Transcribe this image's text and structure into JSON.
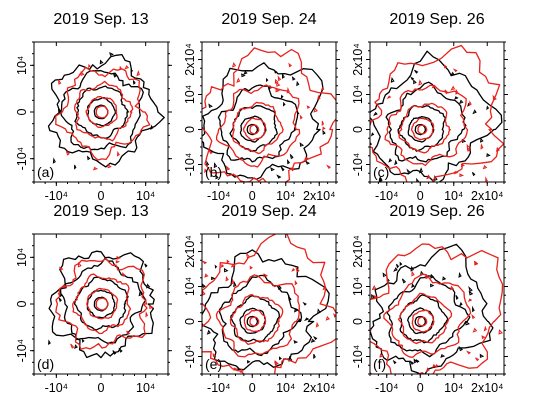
{
  "figure": {
    "panels": [
      {
        "id": "a",
        "title": "2019 Sep. 13",
        "label": "(a)",
        "x_ticks": [
          "-10⁴",
          "0",
          "10⁴"
        ],
        "y_ticks": [
          "10⁴",
          "0",
          "-10⁴"
        ],
        "xlim": [
          -15000,
          15000
        ],
        "ylim": [
          -15000,
          15000
        ]
      },
      {
        "id": "b",
        "title": "2019 Sep. 24",
        "label": "(b)",
        "x_ticks": [
          "-10⁴",
          "0",
          "10⁴",
          "2x10⁴"
        ],
        "y_ticks": [
          "2x10⁴",
          "10⁴",
          "0",
          "-10⁴"
        ],
        "xlim": [
          -15000,
          25000
        ],
        "ylim": [
          -15000,
          25000
        ]
      },
      {
        "id": "c",
        "title": "2019 Sep. 26",
        "label": "(c)",
        "x_ticks": [
          "-10⁴",
          "0",
          "10⁴",
          "2x10⁴"
        ],
        "y_ticks": [
          "2x10⁴",
          "10⁴",
          "0",
          "-10⁴"
        ],
        "xlim": [
          -15000,
          25000
        ],
        "ylim": [
          -15000,
          25000
        ]
      },
      {
        "id": "d",
        "title": "2019 Sep. 13",
        "label": "(d)",
        "x_ticks": [
          "-10⁴",
          "0",
          "10⁴"
        ],
        "y_ticks": [
          "10⁴",
          "0",
          "-10⁴"
        ],
        "xlim": [
          -15000,
          15000
        ],
        "ylim": [
          -15000,
          15000
        ]
      },
      {
        "id": "e",
        "title": "2019 Sep. 24",
        "label": "(e)",
        "x_ticks": [
          "-10⁴",
          "0",
          "10⁴",
          "2x10⁴"
        ],
        "y_ticks": [
          "2x10⁴",
          "10⁴",
          "0",
          "-10⁴"
        ],
        "xlim": [
          -15000,
          25000
        ],
        "ylim": [
          -15000,
          25000
        ]
      },
      {
        "id": "f",
        "title": "2019 Sep. 26",
        "label": "(f)",
        "x_ticks": [
          "-10⁴",
          "0",
          "10⁴",
          "2x10⁴"
        ],
        "y_ticks": [
          "2x10⁴",
          "10⁴",
          "0",
          "-10⁴"
        ],
        "xlim": [
          -15000,
          25000
        ],
        "ylim": [
          -15000,
          25000
        ]
      }
    ]
  },
  "chart_data": [
    {
      "type": "contour",
      "title": "2019 Sep. 13",
      "panel_label": "(a)",
      "xlim": [
        -15000,
        15000
      ],
      "ylim": [
        -15000,
        15000
      ],
      "series": [
        {
          "color": "#000000",
          "levels_radius": [
            1500,
            3000,
            5500,
            8500,
            11000
          ]
        },
        {
          "color": "#e8211b",
          "levels_radius": [
            1300,
            3300,
            6000,
            9000
          ]
        }
      ]
    },
    {
      "type": "contour",
      "title": "2019 Sep. 24",
      "panel_label": "(b)",
      "xlim": [
        -15000,
        25000
      ],
      "ylim": [
        -15000,
        25000
      ],
      "series": [
        {
          "color": "#000000",
          "levels_radius": [
            1500,
            3500,
            6000,
            9500,
            14000
          ]
        },
        {
          "color": "#e8211b",
          "levels_radius": [
            1300,
            3000,
            6500,
            10000,
            16000
          ]
        }
      ]
    },
    {
      "type": "contour",
      "title": "2019 Sep. 26",
      "panel_label": "(c)",
      "xlim": [
        -15000,
        25000
      ],
      "ylim": [
        -15000,
        25000
      ],
      "series": [
        {
          "color": "#000000",
          "levels_radius": [
            1500,
            3500,
            6000,
            9500,
            14000
          ]
        },
        {
          "color": "#e8211b",
          "levels_radius": [
            1300,
            3000,
            6500,
            10000,
            16000
          ]
        }
      ]
    },
    {
      "type": "contour",
      "title": "2019 Sep. 13",
      "panel_label": "(d)",
      "xlim": [
        -15000,
        15000
      ],
      "ylim": [
        -15000,
        15000
      ],
      "series": [
        {
          "color": "#000000",
          "levels_radius": [
            1500,
            3000,
            5500,
            8500,
            11000
          ]
        },
        {
          "color": "#e8211b",
          "levels_radius": [
            1300,
            3300,
            6000,
            9500
          ]
        }
      ]
    },
    {
      "type": "contour",
      "title": "2019 Sep. 24",
      "panel_label": "(e)",
      "xlim": [
        -15000,
        25000
      ],
      "ylim": [
        -15000,
        25000
      ],
      "series": [
        {
          "color": "#000000",
          "levels_radius": [
            1500,
            3500,
            6000,
            9500,
            14000
          ]
        },
        {
          "color": "#e8211b",
          "levels_radius": [
            1300,
            3000,
            6500,
            10000,
            16500
          ]
        }
      ]
    },
    {
      "type": "contour",
      "title": "2019 Sep. 26",
      "panel_label": "(f)",
      "xlim": [
        -15000,
        25000
      ],
      "ylim": [
        -15000,
        25000
      ],
      "series": [
        {
          "color": "#000000",
          "levels_radius": [
            1500,
            3500,
            6000,
            9500,
            14000
          ]
        },
        {
          "color": "#e8211b",
          "levels_radius": [
            1300,
            3000,
            6500,
            10000,
            16500
          ]
        }
      ]
    }
  ]
}
